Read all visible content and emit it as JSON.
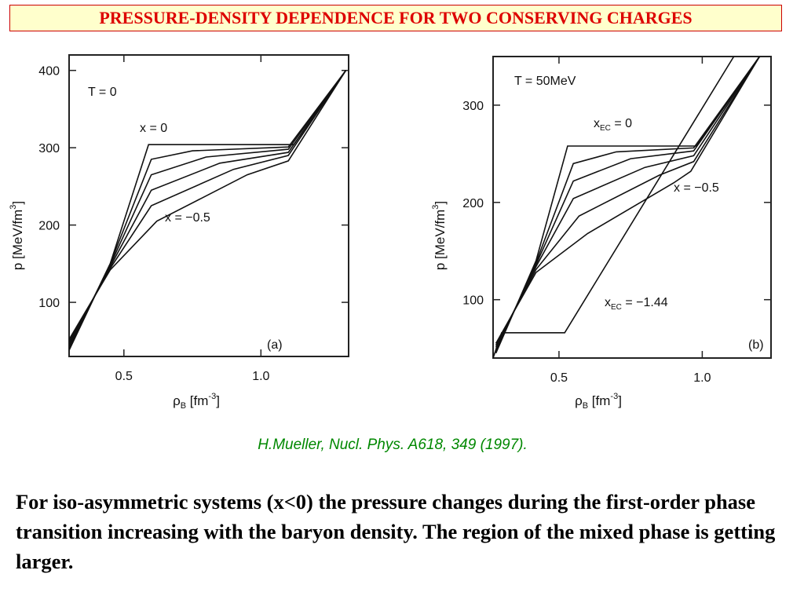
{
  "slide": {
    "title": "PRESSURE-DENSITY DEPENDENCE FOR TWO CONSERVING CHARGES",
    "citation": "H.Mueller, Nucl. Phys. A618, 349 (1997).",
    "body_text": "For iso-asymmetric systems (x<0)  the pressure changes during the first-order phase transition increasing with the baryon density. The region of the mixed phase is getting larger."
  },
  "colors": {
    "title": "#dd0000",
    "title_bg": "#ffffcc",
    "citation": "#008800",
    "ink": "#111111"
  },
  "chart_data": [
    {
      "type": "line",
      "panel_label": "(a)",
      "temperature_label": "T = 0",
      "xlabel_main": "ρ",
      "xlabel_sub": "B",
      "xlabel_unit": "[fm",
      "xlabel_exp": "-3",
      "ylabel": "p  [MeV/fm",
      "ylabel_exp": "3",
      "xlim": [
        0.3,
        1.32
      ],
      "ylim": [
        30,
        420
      ],
      "xticks": [
        "0.5",
        "1.0"
      ],
      "yticks": [
        "100",
        "200",
        "300",
        "400"
      ],
      "annotations": [
        "x = 0",
        "x = −0.5"
      ],
      "series": [
        {
          "x": [
            0.3,
            0.45,
            0.59,
            1.12,
            1.31
          ],
          "y": [
            38,
            150,
            304,
            304,
            400
          ]
        },
        {
          "x": [
            0.3,
            0.45,
            0.6,
            0.75,
            1.1,
            1.31
          ],
          "y": [
            40,
            150,
            285,
            296,
            301,
            400
          ]
        },
        {
          "x": [
            0.3,
            0.45,
            0.6,
            0.8,
            1.1,
            1.31
          ],
          "y": [
            43,
            148,
            265,
            288,
            298,
            400
          ]
        },
        {
          "x": [
            0.3,
            0.45,
            0.6,
            0.85,
            1.1,
            1.31
          ],
          "y": [
            46,
            146,
            245,
            280,
            294,
            400
          ]
        },
        {
          "x": [
            0.3,
            0.45,
            0.6,
            0.9,
            1.1,
            1.31
          ],
          "y": [
            49,
            144,
            225,
            272,
            290,
            400
          ]
        },
        {
          "x": [
            0.3,
            0.45,
            0.62,
            0.95,
            1.1,
            1.31
          ],
          "y": [
            52,
            142,
            205,
            265,
            283,
            400
          ]
        }
      ]
    },
    {
      "type": "line",
      "panel_label": "(b)",
      "temperature_label": "T = 50MeV",
      "xlabel_main": "ρ",
      "xlabel_sub": "B",
      "xlabel_unit": "[fm",
      "xlabel_exp": "-3",
      "ylabel": "p  [MeV/fm",
      "ylabel_exp": "3",
      "xlim": [
        0.27,
        1.24
      ],
      "ylim": [
        40,
        350
      ],
      "xticks": [
        "0.5",
        "1.0"
      ],
      "yticks": [
        "100",
        "200",
        "300"
      ],
      "annotations": [
        "x",
        "EC",
        " = 0",
        "x = −0.5",
        "x",
        "EC",
        " = −1.44"
      ],
      "series": [
        {
          "x": [
            0.28,
            0.42,
            0.53,
            0.98,
            1.2
          ],
          "y": [
            45,
            140,
            258,
            258,
            350
          ]
        },
        {
          "x": [
            0.28,
            0.42,
            0.55,
            0.7,
            0.97,
            1.2
          ],
          "y": [
            47,
            138,
            240,
            252,
            256,
            350
          ]
        },
        {
          "x": [
            0.28,
            0.42,
            0.55,
            0.75,
            0.97,
            1.2
          ],
          "y": [
            49,
            136,
            222,
            245,
            253,
            350
          ]
        },
        {
          "x": [
            0.28,
            0.42,
            0.55,
            0.8,
            0.97,
            1.2
          ],
          "y": [
            51,
            134,
            204,
            236,
            248,
            350
          ]
        },
        {
          "x": [
            0.28,
            0.42,
            0.57,
            0.85,
            0.97,
            1.2
          ],
          "y": [
            53,
            131,
            186,
            228,
            242,
            350
          ]
        },
        {
          "x": [
            0.28,
            0.42,
            0.6,
            0.9,
            0.96,
            1.2
          ],
          "y": [
            55,
            128,
            168,
            220,
            232,
            350
          ]
        },
        {
          "x": [
            0.27,
            0.3,
            0.52,
            1.11
          ],
          "y": [
            40,
            66,
            66,
            350
          ]
        }
      ]
    }
  ]
}
